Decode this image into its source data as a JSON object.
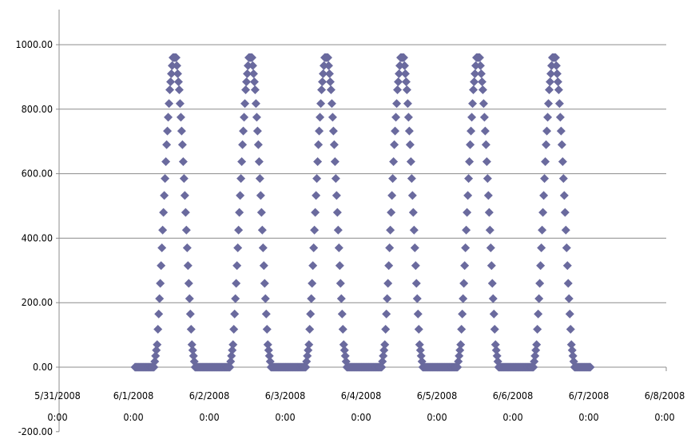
{
  "chart_data": {
    "type": "scatter",
    "title": "",
    "xlabel": "",
    "ylabel": "",
    "marker": "diamond",
    "colors": {
      "series": "#6a6a9e",
      "grid": "#8c8c8c",
      "axis": "#8c8c8c"
    },
    "ylim": [
      -200,
      1000
    ],
    "y_ticks": [
      {
        "value": -200,
        "label": "-200.00"
      },
      {
        "value": 0,
        "label": "0.00"
      },
      {
        "value": 200,
        "label": "200.00"
      },
      {
        "value": 400,
        "label": "400.00"
      },
      {
        "value": 600,
        "label": "600.00"
      },
      {
        "value": 800,
        "label": "800.00"
      },
      {
        "value": 1000,
        "label": "1000.00"
      }
    ],
    "grid": {
      "horizontal": true,
      "vertical": false
    },
    "xlim": [
      "5/31/2008 0:00",
      "6/8/2008 0:00"
    ],
    "x_ticks": [
      {
        "value": "5/31/2008 0:00",
        "line1": "5/31/2008",
        "line2": "0:00"
      },
      {
        "value": "6/1/2008 0:00",
        "line1": "6/1/2008",
        "line2": "0:00"
      },
      {
        "value": "6/2/2008 0:00",
        "line1": "6/2/2008",
        "line2": "0:00"
      },
      {
        "value": "6/3/2008 0:00",
        "line1": "6/3/2008",
        "line2": "0:00"
      },
      {
        "value": "6/4/2008 0:00",
        "line1": "6/4/2008",
        "line2": "0:00"
      },
      {
        "value": "6/5/2008 0:00",
        "line1": "6/5/2008",
        "line2": "0:00"
      },
      {
        "value": "6/6/2008 0:00",
        "line1": "6/6/2008",
        "line2": "0:00"
      },
      {
        "value": "6/7/2008 0:00",
        "line1": "6/7/2008",
        "line2": "0:00"
      },
      {
        "value": "6/8/2008 0:00",
        "line1": "6/8/2008",
        "line2": "0:00"
      }
    ],
    "series": [
      {
        "points": [
          [
            "6/1/2008 0:00",
            0
          ],
          [
            "6/1/2008 1:00",
            0
          ],
          [
            "6/1/2008 2:00",
            0
          ],
          [
            "6/1/2008 3:00",
            0
          ],
          [
            "6/1/2008 4:00",
            0
          ],
          [
            "6/1/2008 5:00",
            0
          ],
          [
            "6/1/2008 6:00",
            0
          ],
          [
            "6/1/2008 7:00",
            70
          ],
          [
            "6/1/2008 8:00",
            260
          ],
          [
            "6/1/2008 9:00",
            480
          ],
          [
            "6/1/2008 10:00",
            690
          ],
          [
            "6/1/2008 11:00",
            860
          ],
          [
            "6/1/2008 12:00",
            960
          ],
          [
            "6/1/2008 13:00",
            960
          ],
          [
            "6/1/2008 14:00",
            860
          ],
          [
            "6/1/2008 15:00",
            690
          ],
          [
            "6/1/2008 16:00",
            480
          ],
          [
            "6/1/2008 17:00",
            260
          ],
          [
            "6/1/2008 18:00",
            70
          ],
          [
            "6/1/2008 19:00",
            0
          ],
          [
            "6/1/2008 20:00",
            0
          ],
          [
            "6/1/2008 21:00",
            0
          ],
          [
            "6/1/2008 22:00",
            0
          ],
          [
            "6/1/2008 23:00",
            0
          ],
          [
            "6/2/2008 0:00",
            0
          ],
          [
            "6/2/2008 1:00",
            0
          ],
          [
            "6/2/2008 2:00",
            0
          ],
          [
            "6/2/2008 3:00",
            0
          ],
          [
            "6/2/2008 4:00",
            0
          ],
          [
            "6/2/2008 5:00",
            0
          ],
          [
            "6/2/2008 6:00",
            0
          ],
          [
            "6/2/2008 7:00",
            70
          ],
          [
            "6/2/2008 8:00",
            260
          ],
          [
            "6/2/2008 9:00",
            480
          ],
          [
            "6/2/2008 10:00",
            690
          ],
          [
            "6/2/2008 11:00",
            860
          ],
          [
            "6/2/2008 12:00",
            960
          ],
          [
            "6/2/2008 13:00",
            960
          ],
          [
            "6/2/2008 14:00",
            860
          ],
          [
            "6/2/2008 15:00",
            690
          ],
          [
            "6/2/2008 16:00",
            480
          ],
          [
            "6/2/2008 17:00",
            260
          ],
          [
            "6/2/2008 18:00",
            70
          ],
          [
            "6/2/2008 19:00",
            0
          ],
          [
            "6/2/2008 20:00",
            0
          ],
          [
            "6/2/2008 21:00",
            0
          ],
          [
            "6/2/2008 22:00",
            0
          ],
          [
            "6/2/2008 23:00",
            0
          ],
          [
            "6/3/2008 0:00",
            0
          ],
          [
            "6/3/2008 1:00",
            0
          ],
          [
            "6/3/2008 2:00",
            0
          ],
          [
            "6/3/2008 3:00",
            0
          ],
          [
            "6/3/2008 4:00",
            0
          ],
          [
            "6/3/2008 5:00",
            0
          ],
          [
            "6/3/2008 6:00",
            0
          ],
          [
            "6/3/2008 7:00",
            70
          ],
          [
            "6/3/2008 8:00",
            260
          ],
          [
            "6/3/2008 9:00",
            480
          ],
          [
            "6/3/2008 10:00",
            690
          ],
          [
            "6/3/2008 11:00",
            860
          ],
          [
            "6/3/2008 12:00",
            960
          ],
          [
            "6/3/2008 13:00",
            960
          ],
          [
            "6/3/2008 14:00",
            860
          ],
          [
            "6/3/2008 15:00",
            690
          ],
          [
            "6/3/2008 16:00",
            480
          ],
          [
            "6/3/2008 17:00",
            260
          ],
          [
            "6/3/2008 18:00",
            70
          ],
          [
            "6/3/2008 19:00",
            0
          ],
          [
            "6/3/2008 20:00",
            0
          ],
          [
            "6/3/2008 21:00",
            0
          ],
          [
            "6/3/2008 22:00",
            0
          ],
          [
            "6/3/2008 23:00",
            0
          ],
          [
            "6/4/2008 0:00",
            0
          ],
          [
            "6/4/2008 1:00",
            0
          ],
          [
            "6/4/2008 2:00",
            0
          ],
          [
            "6/4/2008 3:00",
            0
          ],
          [
            "6/4/2008 4:00",
            0
          ],
          [
            "6/4/2008 5:00",
            0
          ],
          [
            "6/4/2008 6:00",
            0
          ],
          [
            "6/4/2008 7:00",
            70
          ],
          [
            "6/4/2008 8:00",
            260
          ],
          [
            "6/4/2008 9:00",
            480
          ],
          [
            "6/4/2008 10:00",
            690
          ],
          [
            "6/4/2008 11:00",
            860
          ],
          [
            "6/4/2008 12:00",
            960
          ],
          [
            "6/4/2008 13:00",
            960
          ],
          [
            "6/4/2008 14:00",
            860
          ],
          [
            "6/4/2008 15:00",
            690
          ],
          [
            "6/4/2008 16:00",
            480
          ],
          [
            "6/4/2008 17:00",
            260
          ],
          [
            "6/4/2008 18:00",
            70
          ],
          [
            "6/4/2008 19:00",
            0
          ],
          [
            "6/4/2008 20:00",
            0
          ],
          [
            "6/4/2008 21:00",
            0
          ],
          [
            "6/4/2008 22:00",
            0
          ],
          [
            "6/4/2008 23:00",
            0
          ],
          [
            "6/5/2008 0:00",
            0
          ],
          [
            "6/5/2008 1:00",
            0
          ],
          [
            "6/5/2008 2:00",
            0
          ],
          [
            "6/5/2008 3:00",
            0
          ],
          [
            "6/5/2008 4:00",
            0
          ],
          [
            "6/5/2008 5:00",
            0
          ],
          [
            "6/5/2008 6:00",
            0
          ],
          [
            "6/5/2008 7:00",
            70
          ],
          [
            "6/5/2008 8:00",
            260
          ],
          [
            "6/5/2008 9:00",
            480
          ],
          [
            "6/5/2008 10:00",
            690
          ],
          [
            "6/5/2008 11:00",
            860
          ],
          [
            "6/5/2008 12:00",
            960
          ],
          [
            "6/5/2008 13:00",
            960
          ],
          [
            "6/5/2008 14:00",
            860
          ],
          [
            "6/5/2008 15:00",
            690
          ],
          [
            "6/5/2008 16:00",
            480
          ],
          [
            "6/5/2008 17:00",
            260
          ],
          [
            "6/5/2008 18:00",
            70
          ],
          [
            "6/5/2008 19:00",
            0
          ],
          [
            "6/5/2008 20:00",
            0
          ],
          [
            "6/5/2008 21:00",
            0
          ],
          [
            "6/5/2008 22:00",
            0
          ],
          [
            "6/5/2008 23:00",
            0
          ],
          [
            "6/6/2008 0:00",
            0
          ],
          [
            "6/6/2008 1:00",
            0
          ],
          [
            "6/6/2008 2:00",
            0
          ],
          [
            "6/6/2008 3:00",
            0
          ],
          [
            "6/6/2008 4:00",
            0
          ],
          [
            "6/6/2008 5:00",
            0
          ],
          [
            "6/6/2008 6:00",
            0
          ],
          [
            "6/6/2008 7:00",
            70
          ],
          [
            "6/6/2008 8:00",
            260
          ],
          [
            "6/6/2008 9:00",
            480
          ],
          [
            "6/6/2008 10:00",
            690
          ],
          [
            "6/6/2008 11:00",
            860
          ],
          [
            "6/6/2008 12:00",
            960
          ],
          [
            "6/6/2008 13:00",
            960
          ],
          [
            "6/6/2008 14:00",
            860
          ],
          [
            "6/6/2008 15:00",
            690
          ],
          [
            "6/6/2008 16:00",
            480
          ],
          [
            "6/6/2008 17:00",
            260
          ],
          [
            "6/6/2008 18:00",
            70
          ],
          [
            "6/6/2008 19:00",
            0
          ],
          [
            "6/6/2008 20:00",
            0
          ],
          [
            "6/6/2008 21:00",
            0
          ],
          [
            "6/6/2008 22:00",
            0
          ],
          [
            "6/6/2008 23:00",
            0
          ],
          [
            "6/7/2008 0:00",
            0
          ]
        ]
      }
    ]
  }
}
